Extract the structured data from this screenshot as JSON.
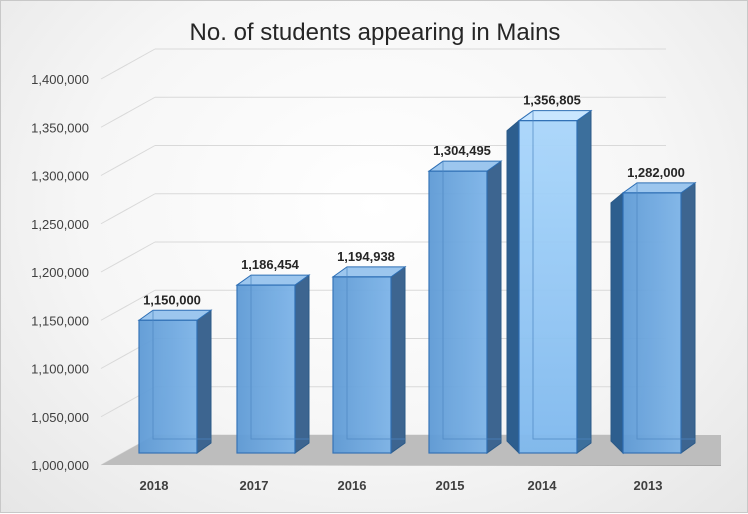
{
  "chart_data": {
    "type": "bar",
    "title": "No. of students appearing in Mains",
    "xlabel": "",
    "ylabel": "",
    "categories": [
      "2018",
      "2017",
      "2016",
      "2015",
      "2014",
      "2013"
    ],
    "values": [
      1150000,
      1186454,
      1194938,
      1304495,
      1356805,
      1282000
    ],
    "data_labels": [
      "1,150,000",
      "1,186,454",
      "1,194,938",
      "1,304,495",
      "1,356,805",
      "1,282,000"
    ],
    "ylim": [
      1000000,
      1400000
    ],
    "yticks": [
      1000000,
      1050000,
      1100000,
      1150000,
      1200000,
      1250000,
      1300000,
      1350000,
      1400000
    ],
    "ytick_labels": [
      "1,000,000",
      "1,050,000",
      "1,100,000",
      "1,150,000",
      "1,200,000",
      "1,250,000",
      "1,300,000",
      "1,350,000",
      "1,400,000"
    ],
    "grid": true,
    "legend": "none",
    "style": "3d-column",
    "colors": {
      "bar": "#6fa8dc",
      "bar_edge": "#2e6fb5",
      "highlight_bar": "#9ccbf2",
      "floor": "#bfbfbf"
    }
  }
}
